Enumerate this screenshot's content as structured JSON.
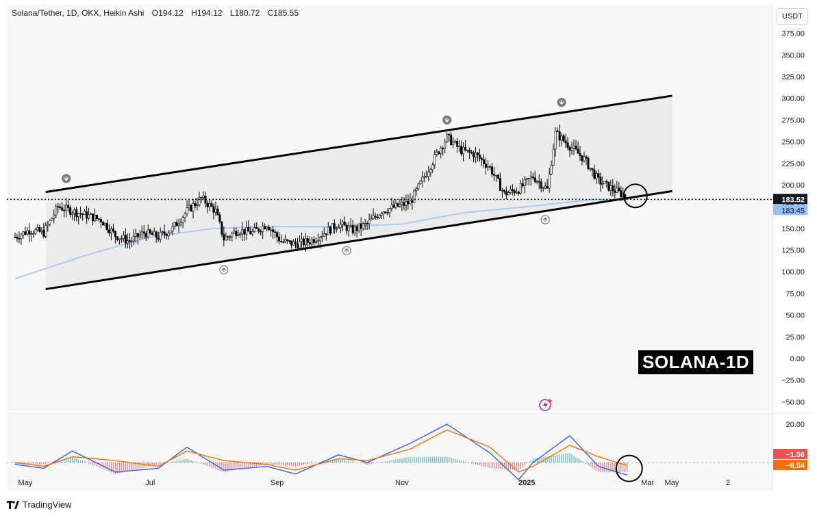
{
  "header": {
    "symbol": "Solana/Tether, 1D, OKX, Heikin Ashi",
    "open": "O194.12",
    "high": "H194.12",
    "low": "L180.72",
    "close": "C185.55"
  },
  "unit_button": "USDT",
  "watermark": "TradingView",
  "overlay_label": "SOLANA-1D",
  "colors": {
    "up": "#26a69a",
    "down": "#ef5350",
    "candle": "#000000",
    "ma": "#a9c8f5",
    "macd": "#2962ff",
    "signal": "#ff6d00",
    "channel_fill": "#e9e9e9",
    "price_tag": "#131722",
    "ma_tag": "#90bff9"
  },
  "chart_data": [
    {
      "type": "candlestick",
      "ylim": [
        -60,
        385
      ],
      "y_ticks": [
        "375.00",
        "350.00",
        "325.00",
        "300.00",
        "275.00",
        "250.00",
        "225.00",
        "200.00",
        "175.00",
        "150.00",
        "125.00",
        "100.00",
        "75.00",
        "50.00",
        "25.00",
        "0.00",
        "−25.00",
        "−50.00"
      ],
      "x_ticks": [
        "May",
        "Jul",
        "Sep",
        "Nov",
        "2025",
        "Mar",
        "May",
        "2"
      ],
      "price_label": "183.52",
      "ma_label": "183.45",
      "current_price": 183.52,
      "ma_value": 183.45,
      "channel": {
        "upper": [
          [
            "2024-05-11",
            192
          ],
          [
            "2025-03-13",
            303
          ]
        ],
        "lower": [
          [
            "2024-05-11",
            80
          ],
          [
            "2025-03-13",
            193
          ]
        ]
      },
      "close_series": [
        [
          "2024-04-26",
          140
        ],
        [
          "2024-05-03",
          148
        ],
        [
          "2024-05-10",
          145
        ],
        [
          "2024-05-17",
          175
        ],
        [
          "2024-05-24",
          170
        ],
        [
          "2024-05-31",
          165
        ],
        [
          "2024-06-07",
          160
        ],
        [
          "2024-06-14",
          142
        ],
        [
          "2024-06-21",
          135
        ],
        [
          "2024-06-28",
          145
        ],
        [
          "2024-07-05",
          140
        ],
        [
          "2024-07-12",
          150
        ],
        [
          "2024-07-19",
          170
        ],
        [
          "2024-07-26",
          185
        ],
        [
          "2024-08-02",
          170
        ],
        [
          "2024-08-06",
          138
        ],
        [
          "2024-08-13",
          148
        ],
        [
          "2024-08-20",
          145
        ],
        [
          "2024-08-27",
          155
        ],
        [
          "2024-09-03",
          135
        ],
        [
          "2024-09-10",
          132
        ],
        [
          "2024-09-17",
          135
        ],
        [
          "2024-09-24",
          145
        ],
        [
          "2024-10-01",
          155
        ],
        [
          "2024-10-08",
          148
        ],
        [
          "2024-10-15",
          155
        ],
        [
          "2024-10-22",
          170
        ],
        [
          "2024-10-29",
          175
        ],
        [
          "2024-11-05",
          180
        ],
        [
          "2024-11-12",
          210
        ],
        [
          "2024-11-19",
          240
        ],
        [
          "2024-11-23",
          255
        ],
        [
          "2024-11-30",
          240
        ],
        [
          "2024-12-07",
          235
        ],
        [
          "2024-12-14",
          220
        ],
        [
          "2024-12-21",
          190
        ],
        [
          "2024-12-28",
          195
        ],
        [
          "2025-01-04",
          210
        ],
        [
          "2025-01-11",
          195
        ],
        [
          "2025-01-15",
          260
        ],
        [
          "2025-01-22",
          245
        ],
        [
          "2025-01-29",
          230
        ],
        [
          "2025-02-05",
          205
        ],
        [
          "2025-02-12",
          195
        ],
        [
          "2025-02-19",
          186
        ]
      ],
      "moving_average": [
        [
          "2024-04-26",
          92
        ],
        [
          "2024-06-01",
          120
        ],
        [
          "2024-07-01",
          140
        ],
        [
          "2024-08-01",
          150
        ],
        [
          "2024-09-01",
          152
        ],
        [
          "2024-10-01",
          152
        ],
        [
          "2024-11-01",
          155
        ],
        [
          "2024-12-01",
          168
        ],
        [
          "2025-01-01",
          175
        ],
        [
          "2025-02-01",
          183
        ],
        [
          "2025-02-19",
          183.45
        ]
      ],
      "pivot_markers": [
        {
          "date": "2024-05-21",
          "direction": "down"
        },
        {
          "date": "2024-08-06",
          "direction": "up"
        },
        {
          "date": "2024-10-05",
          "direction": "up"
        },
        {
          "date": "2024-11-23",
          "direction": "down"
        },
        {
          "date": "2025-01-10",
          "direction": "up"
        },
        {
          "date": "2025-01-18",
          "direction": "down"
        }
      ]
    },
    {
      "type": "macd",
      "ylim": [
        -15,
        25
      ],
      "y_ticks": [
        "20.00"
      ],
      "value_labels": [
        "−1.56",
        "−6.54"
      ],
      "macd": [
        [
          "2024-04-26",
          -1
        ],
        [
          "2024-05-10",
          -3
        ],
        [
          "2024-05-24",
          6
        ],
        [
          "2024-06-14",
          -5
        ],
        [
          "2024-07-05",
          -3
        ],
        [
          "2024-07-19",
          8
        ],
        [
          "2024-08-06",
          -4
        ],
        [
          "2024-08-27",
          -2
        ],
        [
          "2024-09-10",
          -6
        ],
        [
          "2024-10-01",
          4
        ],
        [
          "2024-10-15",
          0
        ],
        [
          "2024-11-05",
          10
        ],
        [
          "2024-11-23",
          20
        ],
        [
          "2024-12-14",
          5
        ],
        [
          "2024-12-28",
          -9
        ],
        [
          "2025-01-04",
          0
        ],
        [
          "2025-01-22",
          14
        ],
        [
          "2025-02-05",
          -2
        ],
        [
          "2025-02-19",
          -6.54
        ]
      ],
      "signal": [
        [
          "2024-04-26",
          0
        ],
        [
          "2024-05-10",
          -2
        ],
        [
          "2024-05-24",
          3
        ],
        [
          "2024-06-14",
          1
        ],
        [
          "2024-07-05",
          -2
        ],
        [
          "2024-07-19",
          6
        ],
        [
          "2024-08-06",
          1
        ],
        [
          "2024-08-27",
          -1
        ],
        [
          "2024-09-10",
          -4
        ],
        [
          "2024-10-01",
          2
        ],
        [
          "2024-10-15",
          1
        ],
        [
          "2024-11-05",
          7
        ],
        [
          "2024-11-23",
          17
        ],
        [
          "2024-12-14",
          8
        ],
        [
          "2024-12-28",
          -5
        ],
        [
          "2025-01-04",
          -2
        ],
        [
          "2025-01-22",
          9
        ],
        [
          "2025-02-05",
          3
        ],
        [
          "2025-02-19",
          -1.56
        ]
      ]
    }
  ]
}
